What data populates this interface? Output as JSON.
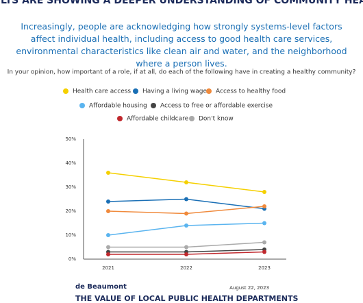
{
  "chart_data": {
    "type": "line",
    "title": "ADULTS ARE SHOWING A DEEPER UNDERSTANDING OF COMMUNITY HEALTH",
    "subtitle": "Increasingly, people are acknowledging how strongly systems-level factors affect individual health, including access to good health care services, environmental characteristics like clean air and water, and the neighborhood where a person lives.",
    "question": "In your opinion, how important of a role, if at all, do each of the following have in creating a healthy community?",
    "categories": [
      "2021",
      "2022",
      "2023"
    ],
    "series": [
      {
        "name": "Health care access",
        "color": "#f5d000",
        "values": [
          36,
          32,
          28
        ]
      },
      {
        "name": "Having a living wage",
        "color": "#1a6fb5",
        "values": [
          24,
          25,
          21
        ]
      },
      {
        "name": "Access to healthy food",
        "color": "#f08a3c",
        "values": [
          20,
          19,
          22
        ]
      },
      {
        "name": "Affordable housing",
        "color": "#5ab4ef",
        "values": [
          10,
          14,
          15
        ]
      },
      {
        "name": "Access to free or affordable exercise",
        "color": "#444444",
        "values": [
          3,
          3,
          4
        ]
      },
      {
        "name": "Affordable childcare",
        "color": "#c0282d",
        "values": [
          2,
          2,
          3
        ]
      },
      {
        "name": "Don't know",
        "color": "#aaaaaa",
        "values": [
          5,
          5,
          7
        ]
      }
    ],
    "ylim": [
      0,
      50
    ],
    "yticks": [
      {
        "value": 0,
        "label": "0%"
      },
      {
        "value": 10,
        "label": "10%"
      },
      {
        "value": 20,
        "label": "20%"
      },
      {
        "value": 30,
        "label": "30%"
      },
      {
        "value": 40,
        "label": "40%"
      },
      {
        "value": 50,
        "label": "50%"
      }
    ],
    "source": "de Beaumont",
    "date": "August 22, 2023",
    "footer": "THE VALUE OF LOCAL PUBLIC HEALTH DEPARTMENTS"
  }
}
